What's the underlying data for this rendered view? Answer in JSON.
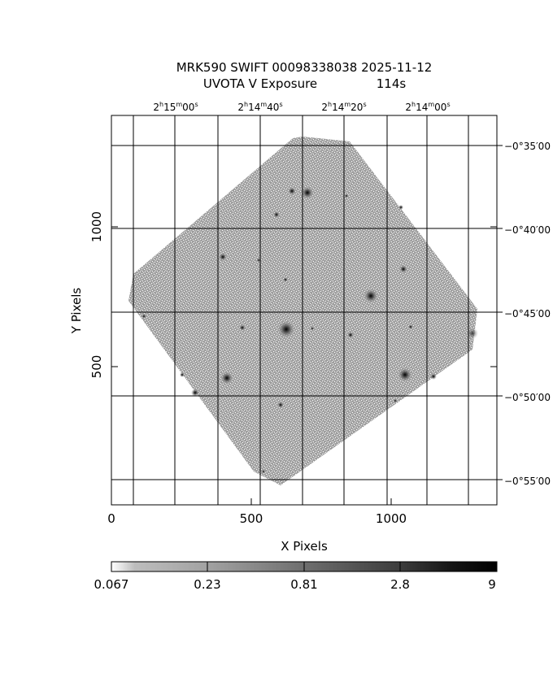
{
  "title": {
    "line1": "MRK590 SWIFT 00098338038 2025-11-12",
    "line2_left": "UVOTA V Exposure",
    "line2_right": "114s"
  },
  "axes": {
    "xlabel": "X Pixels",
    "ylabel": "Y Pixels",
    "x_ticks": [
      "0",
      "500",
      "1000"
    ],
    "y_ticks": [
      "500",
      "1000"
    ],
    "ra_ticks": [
      {
        "h": "2",
        "m": "15",
        "s": "00"
      },
      {
        "h": "2",
        "m": "14",
        "s": "40"
      },
      {
        "h": "2",
        "m": "14",
        "s": "20"
      },
      {
        "h": "2",
        "m": "14",
        "s": "00"
      }
    ],
    "dec_ticks": [
      "−0°35′00",
      "−0°40′00",
      "−0°45′00",
      "−0°50′00",
      "−0°55′00"
    ]
  },
  "colorbar": {
    "labels": [
      "0.067",
      "0.23",
      "0.81",
      "2.8",
      "9"
    ]
  },
  "colors": {
    "image_gray": "#a8a8a8",
    "grid": "#000000",
    "background": "#ffffff"
  }
}
